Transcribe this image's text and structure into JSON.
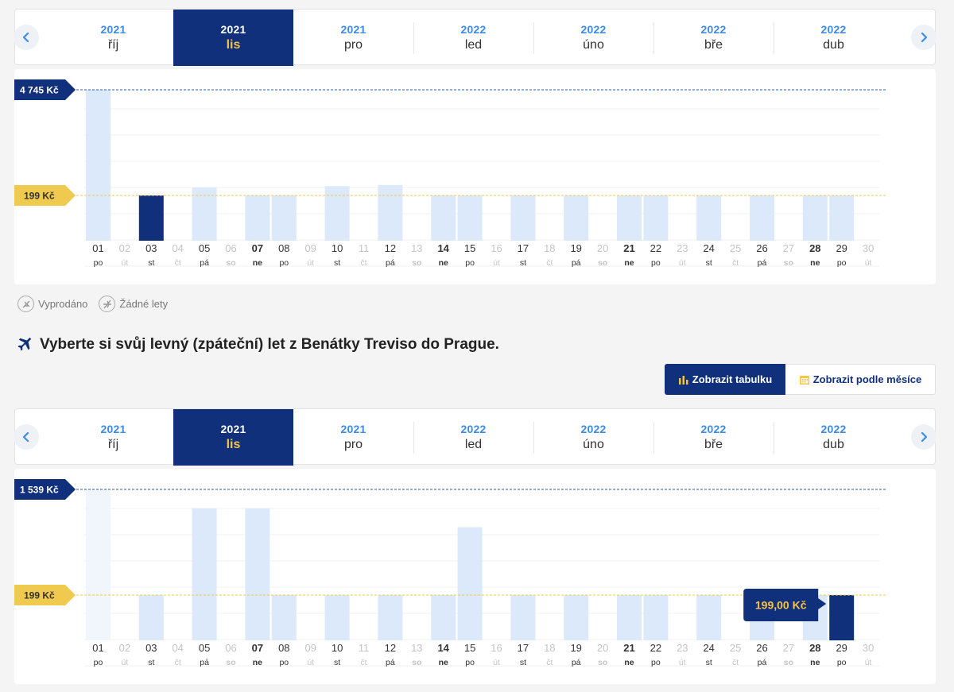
{
  "months": [
    {
      "year": "2021",
      "month": "říj",
      "active": false
    },
    {
      "year": "2021",
      "month": "lis",
      "active": true
    },
    {
      "year": "2021",
      "month": "pro",
      "active": false
    },
    {
      "year": "2022",
      "month": "led",
      "active": false
    },
    {
      "year": "2022",
      "month": "úno",
      "active": false
    },
    {
      "year": "2022",
      "month": "bře",
      "active": false
    },
    {
      "year": "2022",
      "month": "dub",
      "active": false
    }
  ],
  "colors": {
    "navy": "#11307c",
    "bar": "#dce9fb",
    "bar_faded": "#f1f6fd",
    "yellow": "#f0c94f",
    "text_muted": "#c4c4c4"
  },
  "days": [
    {
      "d": "01",
      "w": "po"
    },
    {
      "d": "02",
      "w": "út"
    },
    {
      "d": "03",
      "w": "st"
    },
    {
      "d": "04",
      "w": "čt"
    },
    {
      "d": "05",
      "w": "pá"
    },
    {
      "d": "06",
      "w": "so"
    },
    {
      "d": "07",
      "w": "ne"
    },
    {
      "d": "08",
      "w": "po"
    },
    {
      "d": "09",
      "w": "út"
    },
    {
      "d": "10",
      "w": "st"
    },
    {
      "d": "11",
      "w": "čt"
    },
    {
      "d": "12",
      "w": "pá"
    },
    {
      "d": "13",
      "w": "so"
    },
    {
      "d": "14",
      "w": "ne"
    },
    {
      "d": "15",
      "w": "po"
    },
    {
      "d": "16",
      "w": "út"
    },
    {
      "d": "17",
      "w": "st"
    },
    {
      "d": "18",
      "w": "čt"
    },
    {
      "d": "19",
      "w": "pá"
    },
    {
      "d": "20",
      "w": "so"
    },
    {
      "d": "21",
      "w": "ne"
    },
    {
      "d": "22",
      "w": "po"
    },
    {
      "d": "23",
      "w": "út"
    },
    {
      "d": "24",
      "w": "st"
    },
    {
      "d": "25",
      "w": "čt"
    },
    {
      "d": "26",
      "w": "pá"
    },
    {
      "d": "27",
      "w": "so"
    },
    {
      "d": "28",
      "w": "ne"
    },
    {
      "d": "29",
      "w": "po"
    },
    {
      "d": "30",
      "w": "út"
    }
  ],
  "outbound": {
    "max_label": "4 745 Kč",
    "min_label": "199 Kč",
    "max_value": 4745,
    "min_value": 199,
    "prices": [
      4745,
      null,
      199,
      null,
      550,
      null,
      199,
      199,
      null,
      600,
      null,
      650,
      null,
      199,
      199,
      null,
      199,
      null,
      199,
      null,
      199,
      199,
      null,
      199,
      null,
      199,
      null,
      199,
      199,
      null
    ],
    "available": [
      true,
      false,
      true,
      false,
      true,
      false,
      true,
      true,
      false,
      true,
      false,
      true,
      false,
      true,
      true,
      false,
      true,
      false,
      true,
      false,
      true,
      true,
      false,
      true,
      false,
      true,
      false,
      true,
      true,
      false
    ],
    "selected_day": "03"
  },
  "legend": {
    "sold_out": "Vyprodáno",
    "no_flights": "Žádné lety"
  },
  "heading": "Vyberte si svůj levný (zpáteční) let z Benátky Treviso do Prague.",
  "view_buttons": {
    "table": "Zobrazit tabulku",
    "by_month": "Zobrazit podle měsíce"
  },
  "return": {
    "max_label": "1 539 Kč",
    "min_label": "199 Kč",
    "max_value": 1539,
    "min_value": 199,
    "prices": [
      1539,
      null,
      199,
      null,
      1300,
      null,
      1300,
      199,
      null,
      199,
      null,
      199,
      null,
      199,
      1060,
      null,
      199,
      null,
      199,
      null,
      199,
      199,
      null,
      199,
      null,
      199,
      null,
      199,
      199,
      null
    ],
    "available": [
      false,
      false,
      true,
      false,
      true,
      false,
      true,
      true,
      false,
      true,
      false,
      true,
      false,
      true,
      true,
      false,
      true,
      false,
      true,
      false,
      true,
      true,
      false,
      true,
      false,
      true,
      false,
      true,
      true,
      false
    ],
    "selected_day": "29",
    "tooltip": "199,00 Kč"
  }
}
